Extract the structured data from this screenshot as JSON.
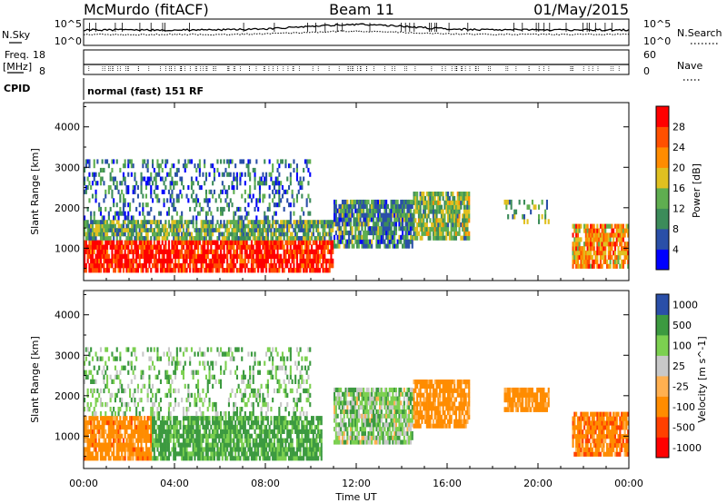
{
  "header": {
    "station": "McMurdo (fitACF)",
    "beam": "Beam 11",
    "date": "01/May/2015"
  },
  "panels": {
    "nsky": {
      "left_label": "N.Sky",
      "right_label": "N.Search",
      "left_ticks": [
        "10^5",
        "10^0"
      ],
      "right_ticks": [
        "10^5",
        "10^0"
      ]
    },
    "freq": {
      "left_label_1": "Freq.",
      "left_label_2": "[MHz]",
      "left_ticks": [
        "18",
        "8"
      ],
      "right_label": "Nave",
      "right_ticks": [
        "60",
        "0"
      ]
    },
    "cpid": {
      "label": "CPID",
      "value": "normal (fast) 151 RF"
    }
  },
  "colors": {
    "power_scale": [
      "#0000ff",
      "#2a4fa8",
      "#3c8c5a",
      "#5fae50",
      "#e0c020",
      "#ff8c00",
      "#ff5000",
      "#ff0000"
    ],
    "velocity_scale": [
      "#ff0000",
      "#ff4000",
      "#ff8c00",
      "#ffb050",
      "#c8c8c8",
      "#7cd050",
      "#3c9a40",
      "#2a4fa8"
    ],
    "ground_scatter": "#a0a0a0"
  },
  "chart_data": [
    {
      "type": "heatmap",
      "panel": "power",
      "title": "",
      "xlabel": "Time UT",
      "ylabel": "Slant Range [km]",
      "x_ticks": [
        "00:00",
        "04:00",
        "08:00",
        "12:00",
        "16:00",
        "20:00",
        "00:00"
      ],
      "y_ticks": [
        "1000",
        "2000",
        "3000",
        "4000"
      ],
      "ylim": [
        200,
        4600
      ],
      "colorbar": {
        "label": "Power [dB]",
        "ticks": [
          "4",
          "8",
          "12",
          "16",
          "20",
          "24",
          "28"
        ],
        "range": [
          0,
          32
        ]
      },
      "regions": [
        {
          "t_start": 0.0,
          "t_end": 11.0,
          "r_min": 400,
          "r_max": 1200,
          "power": 30
        },
        {
          "t_start": 0.0,
          "t_end": 11.0,
          "r_min": 1200,
          "r_max": 1700,
          "power": 12
        },
        {
          "t_start": 0.0,
          "t_end": 10.0,
          "r_min": 1700,
          "r_max": 3200,
          "power": 8
        },
        {
          "t_start": 11.0,
          "t_end": 14.5,
          "r_min": 1000,
          "r_max": 2200,
          "power": 10
        },
        {
          "t_start": 14.5,
          "t_end": 17.0,
          "r_min": 1200,
          "r_max": 2400,
          "power": 14
        },
        {
          "t_start": 18.5,
          "t_end": 20.5,
          "r_min": 1600,
          "r_max": 2200,
          "power": 12
        },
        {
          "t_start": 21.5,
          "t_end": 24.0,
          "r_min": 500,
          "r_max": 1600,
          "power": 22
        }
      ]
    },
    {
      "type": "heatmap",
      "panel": "velocity",
      "title": "",
      "xlabel": "Time UT",
      "ylabel": "Slant Range [km]",
      "x_ticks": [
        "00:00",
        "04:00",
        "08:00",
        "12:00",
        "16:00",
        "20:00",
        "00:00"
      ],
      "y_ticks": [
        "1000",
        "2000",
        "3000",
        "4000"
      ],
      "ylim": [
        200,
        4600
      ],
      "colorbar": {
        "label": "Velocity [m s^-1]",
        "ticks": [
          "1000",
          "500",
          "100",
          "25",
          "-25",
          "-100",
          "-500",
          "-1000"
        ],
        "range": [
          -1200,
          1200
        ]
      },
      "regions": [
        {
          "t_start": 0.0,
          "t_end": 3.0,
          "r_min": 400,
          "r_max": 1500,
          "velocity": -300
        },
        {
          "t_start": 3.0,
          "t_end": 10.5,
          "r_min": 400,
          "r_max": 1500,
          "velocity": 150
        },
        {
          "t_start": 0.0,
          "t_end": 10.0,
          "r_min": 1500,
          "r_max": 3200,
          "velocity": 80
        },
        {
          "t_start": 11.0,
          "t_end": 14.5,
          "r_min": 800,
          "r_max": 2200,
          "velocity": 60
        },
        {
          "t_start": 14.5,
          "t_end": 17.0,
          "r_min": 1200,
          "r_max": 2400,
          "velocity": -200
        },
        {
          "t_start": 18.5,
          "t_end": 20.5,
          "r_min": 1600,
          "r_max": 2200,
          "velocity": -250
        },
        {
          "t_start": 21.5,
          "t_end": 24.0,
          "r_min": 500,
          "r_max": 1600,
          "velocity": -350
        }
      ]
    }
  ]
}
